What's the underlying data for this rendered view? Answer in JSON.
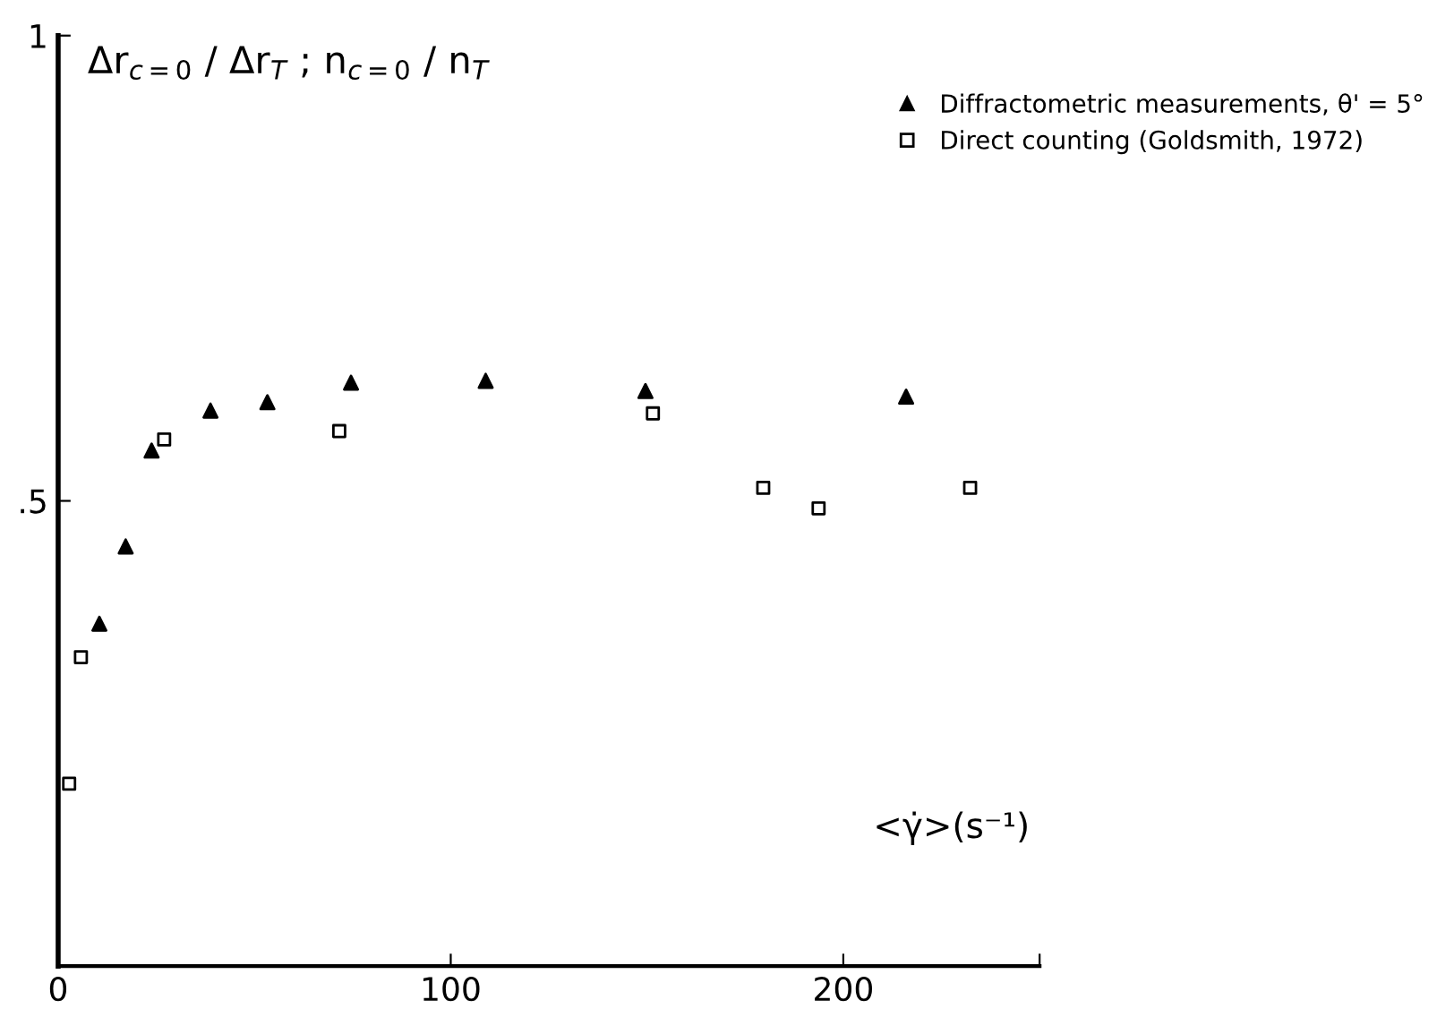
{
  "chart_data": {
    "type": "scatter",
    "ylabel": "Δr$_{c=0}$ / Δr$_{T}$ ; n$_{c=0}$ / n$_{T}$",
    "xlabel": "<γ̇>(s⁻¹)",
    "series": [
      {
        "name": "Diffractometric measurements, θ' = 5°",
        "color": "#000000",
        "marker": "triangle",
        "x": [
          10.5,
          17.2,
          23.8,
          38.8,
          53.3,
          74.6,
          108.9,
          149.6,
          216
        ],
        "values": [
          0.368,
          0.451,
          0.554,
          0.597,
          0.606,
          0.627,
          0.629,
          0.618,
          0.612
        ]
      },
      {
        "name": "Direct counting (Goldsmith, 1972)",
        "color": "#000000",
        "marker": "square",
        "x": [
          2.8,
          5.8,
          27.0,
          71.6,
          151.5,
          179.6,
          193.7,
          232.3
        ],
        "values": [
          0.196,
          0.332,
          0.566,
          0.575,
          0.594,
          0.514,
          0.492,
          0.514
        ]
      }
    ],
    "xlim": [
      0,
      250
    ],
    "xticks": [
      0,
      100,
      200,
      {
        "value": 250,
        "label": null
      }
    ],
    "ylim": [
      0,
      1
    ],
    "yticks": [
      {
        "value": 0.5,
        "label": ".5"
      },
      1
    ],
    "legend": "top right",
    "grid": false
  }
}
